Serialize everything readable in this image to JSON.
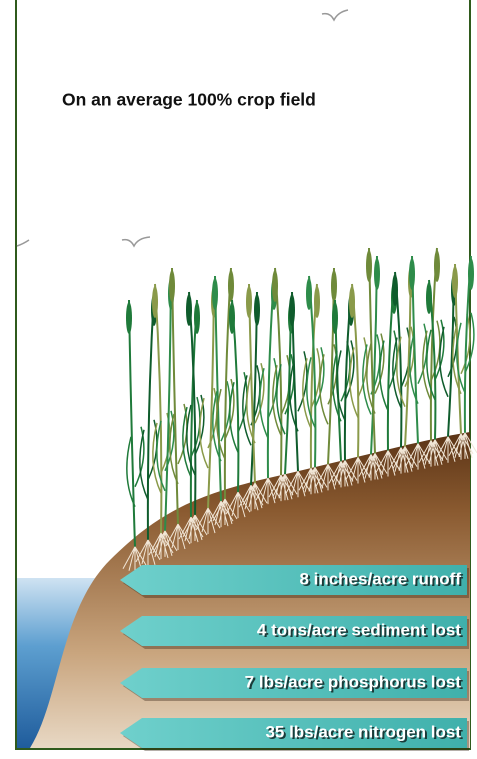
{
  "title": "On an average 100% crop field",
  "losses": [
    "8 inches/acre runoff",
    "4 tons/acre sediment lost",
    "7 lbs/acre phosphorus lost",
    "35 lbs/acre nitrogen lost"
  ]
}
